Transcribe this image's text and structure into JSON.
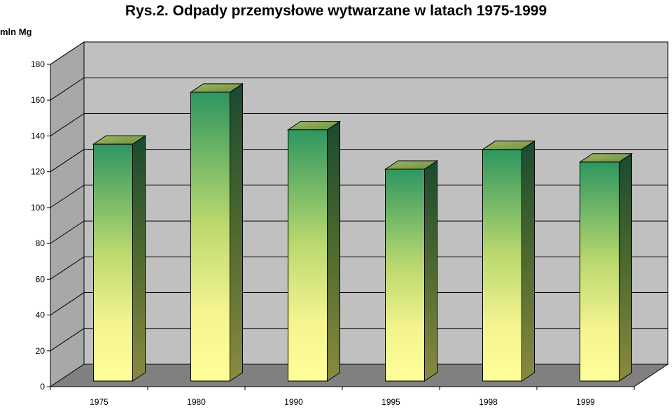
{
  "chart_data": {
    "type": "bar",
    "title": "Rys.2. Odpady przemysłowe wytwarzane w latach 1975-1999",
    "ylabel": "mln Mg",
    "xlabel": "",
    "categories": [
      "1975",
      "1980",
      "1990",
      "1995",
      "1998",
      "1999"
    ],
    "values": [
      137,
      166,
      145,
      123,
      134,
      127
    ],
    "ylim": [
      0,
      180
    ],
    "yticks": [
      0,
      20,
      40,
      60,
      80,
      100,
      120,
      140,
      160,
      180
    ],
    "grid": true,
    "legend": "none",
    "style": "3d-column",
    "colors": {
      "bar_top": "#2e9660",
      "bar_bottom": "#ffff9a",
      "wall": "#c0c0c0",
      "floor": "#808080"
    }
  }
}
